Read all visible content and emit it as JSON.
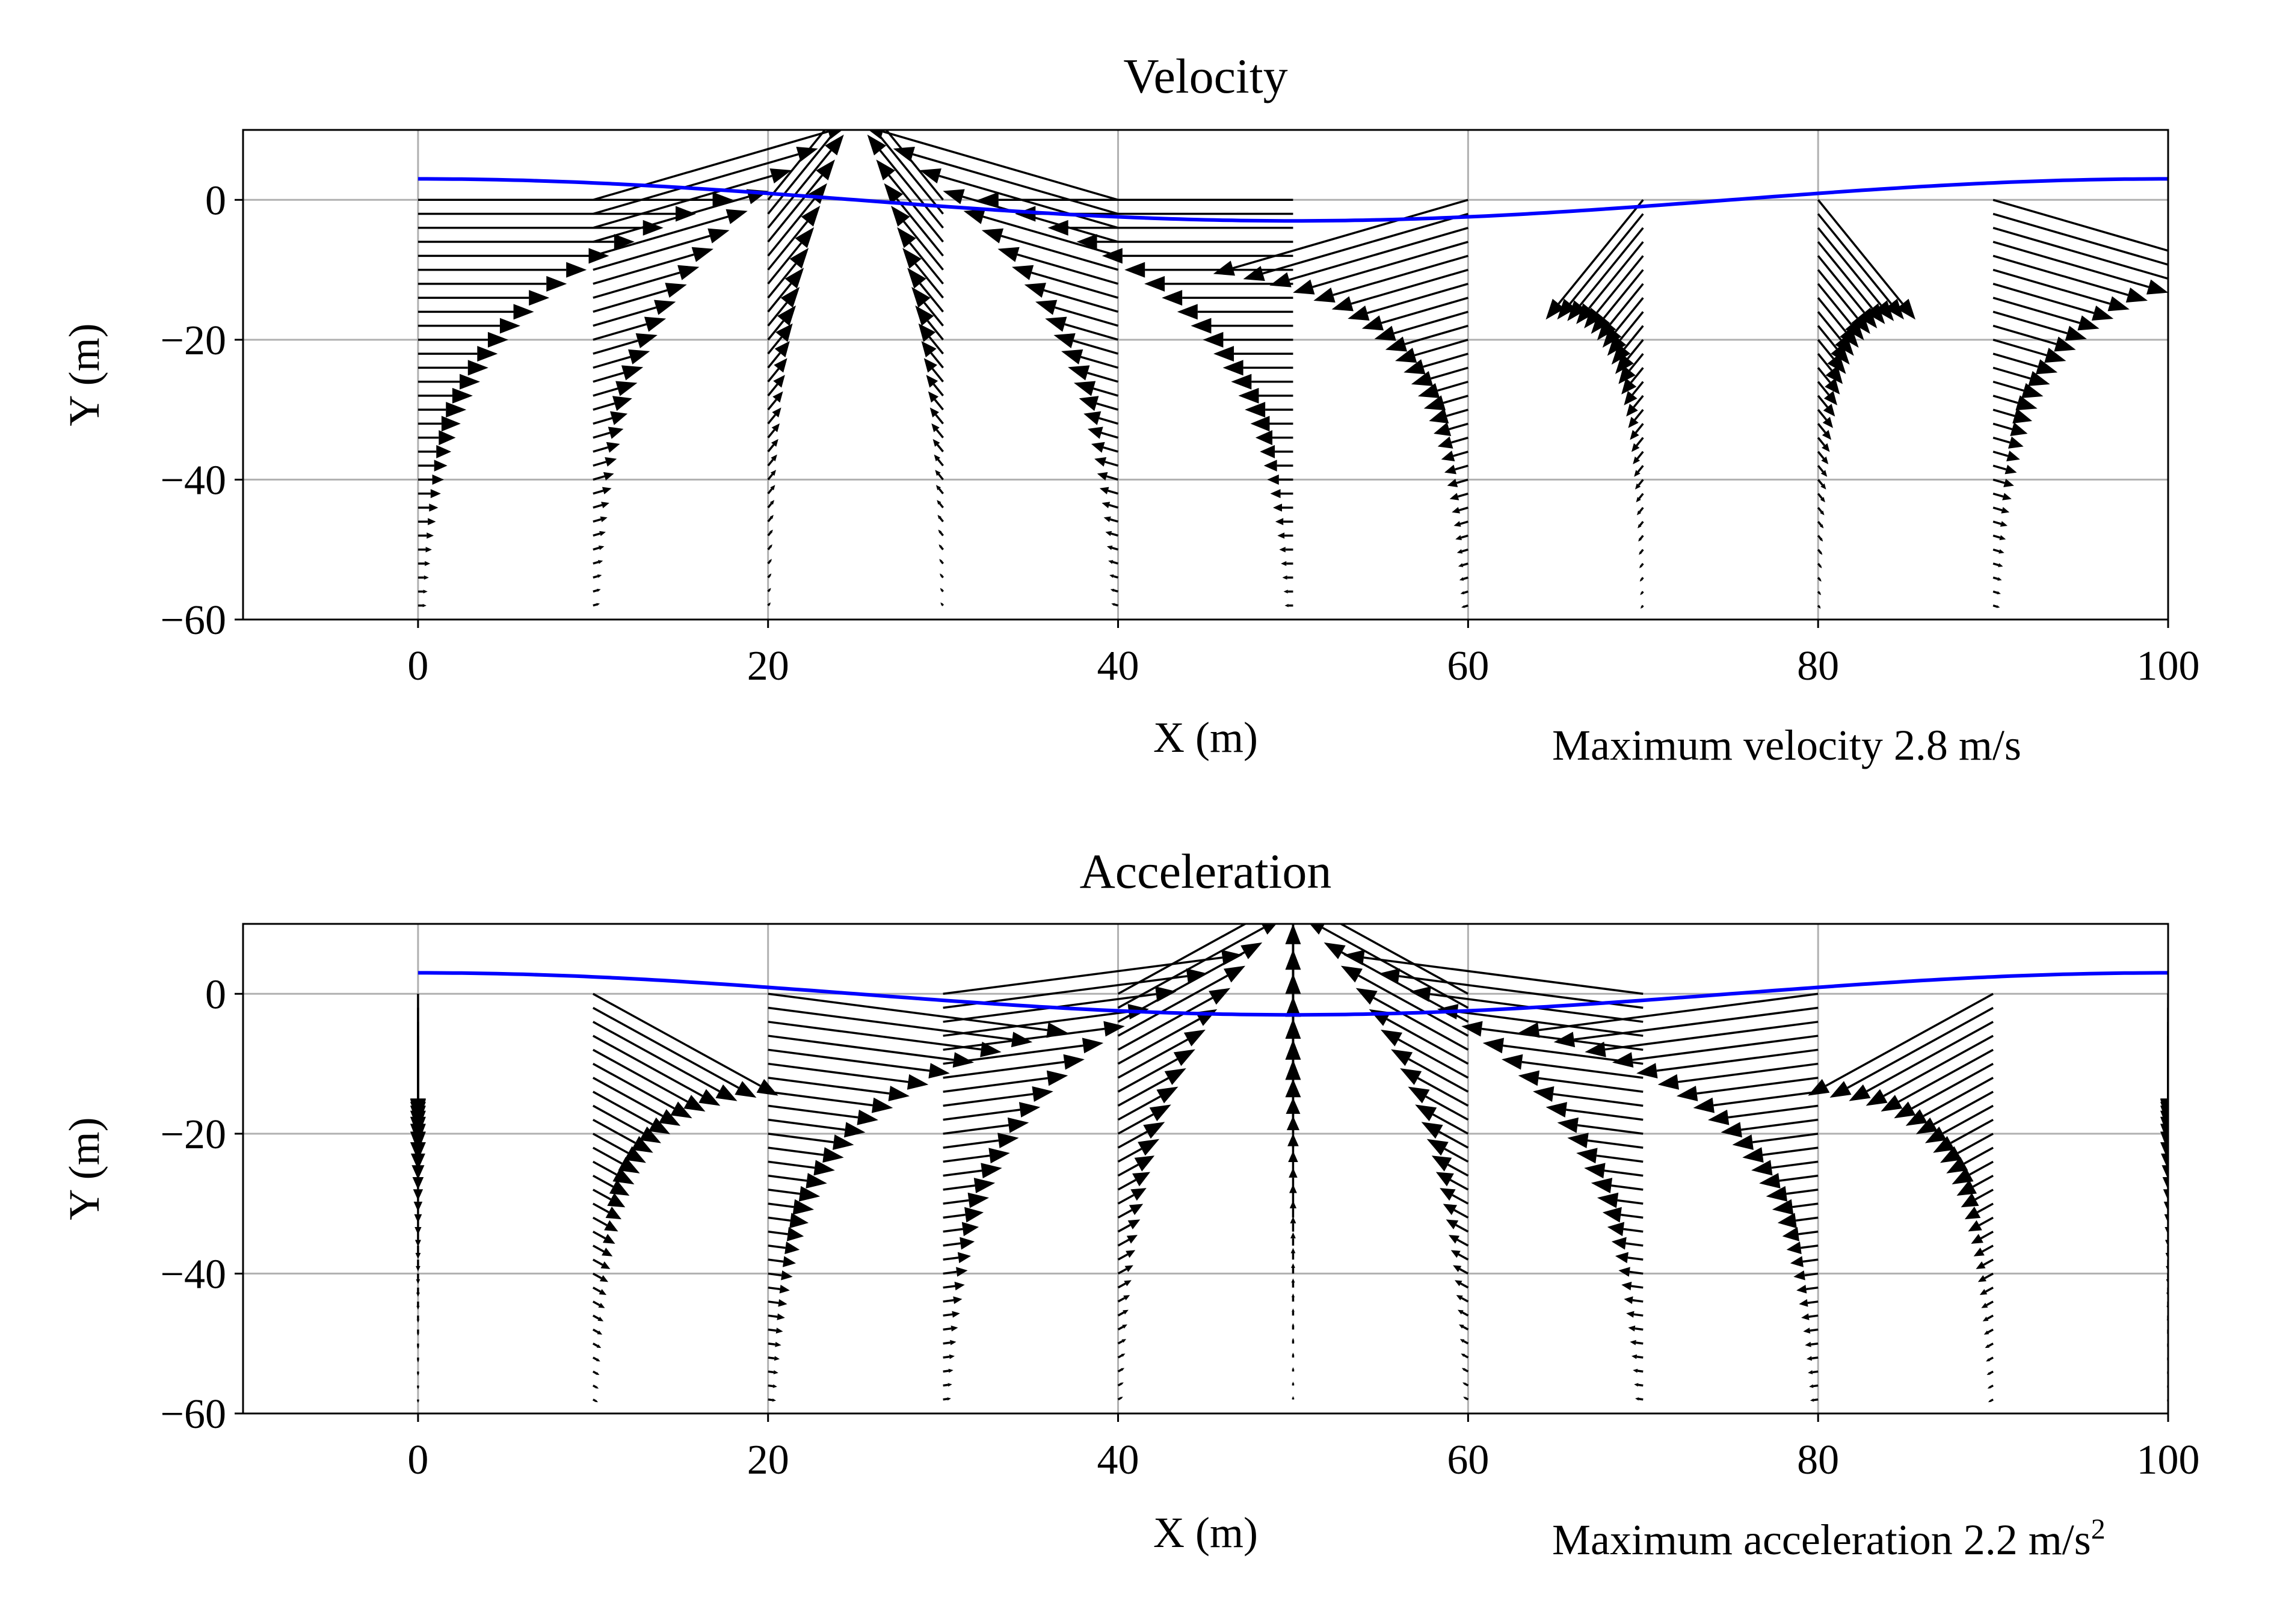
{
  "colors": {
    "surface": "#0000ff",
    "arrow": "#000000",
    "grid": "#b0b0b0"
  },
  "chart_data": [
    {
      "type": "quiver",
      "title": "Velocity",
      "xlabel": "X (m)",
      "ylabel": "Y (m)",
      "xlim": [
        -10,
        100
      ],
      "ylim": [
        -60,
        10
      ],
      "xticks": [
        0,
        20,
        40,
        60,
        80,
        100
      ],
      "yticks": [
        0,
        -20,
        -40,
        -60
      ],
      "grid": true,
      "annotation": "Maximum velocity 2.8 m/s",
      "annotation_sup": "",
      "wave": {
        "amplitude": 3,
        "wavelength": 100,
        "depth_decay": 16,
        "field": "velocity",
        "max_value": 2.8
      },
      "columns_x": [
        0,
        10,
        20,
        30,
        40,
        50,
        60,
        70,
        80,
        90,
        100
      ],
      "points_y": {
        "start": 0,
        "stop": -58,
        "step": 2
      }
    },
    {
      "type": "quiver",
      "title": "Acceleration",
      "xlabel": "X (m)",
      "ylabel": "Y (m)",
      "xlim": [
        -10,
        100
      ],
      "ylim": [
        -60,
        10
      ],
      "xticks": [
        0,
        20,
        40,
        60,
        80,
        100
      ],
      "yticks": [
        0,
        -20,
        -40,
        -60
      ],
      "grid": true,
      "annotation": "Maximum acceleration 2.2 m/s",
      "annotation_sup": "2",
      "wave": {
        "amplitude": 3,
        "wavelength": 100,
        "depth_decay": 16,
        "field": "acceleration",
        "max_value": 2.2
      },
      "columns_x": [
        0,
        10,
        20,
        30,
        40,
        50,
        60,
        70,
        80,
        90,
        100
      ],
      "points_y": {
        "start": 0,
        "stop": -58,
        "step": 2
      }
    }
  ]
}
